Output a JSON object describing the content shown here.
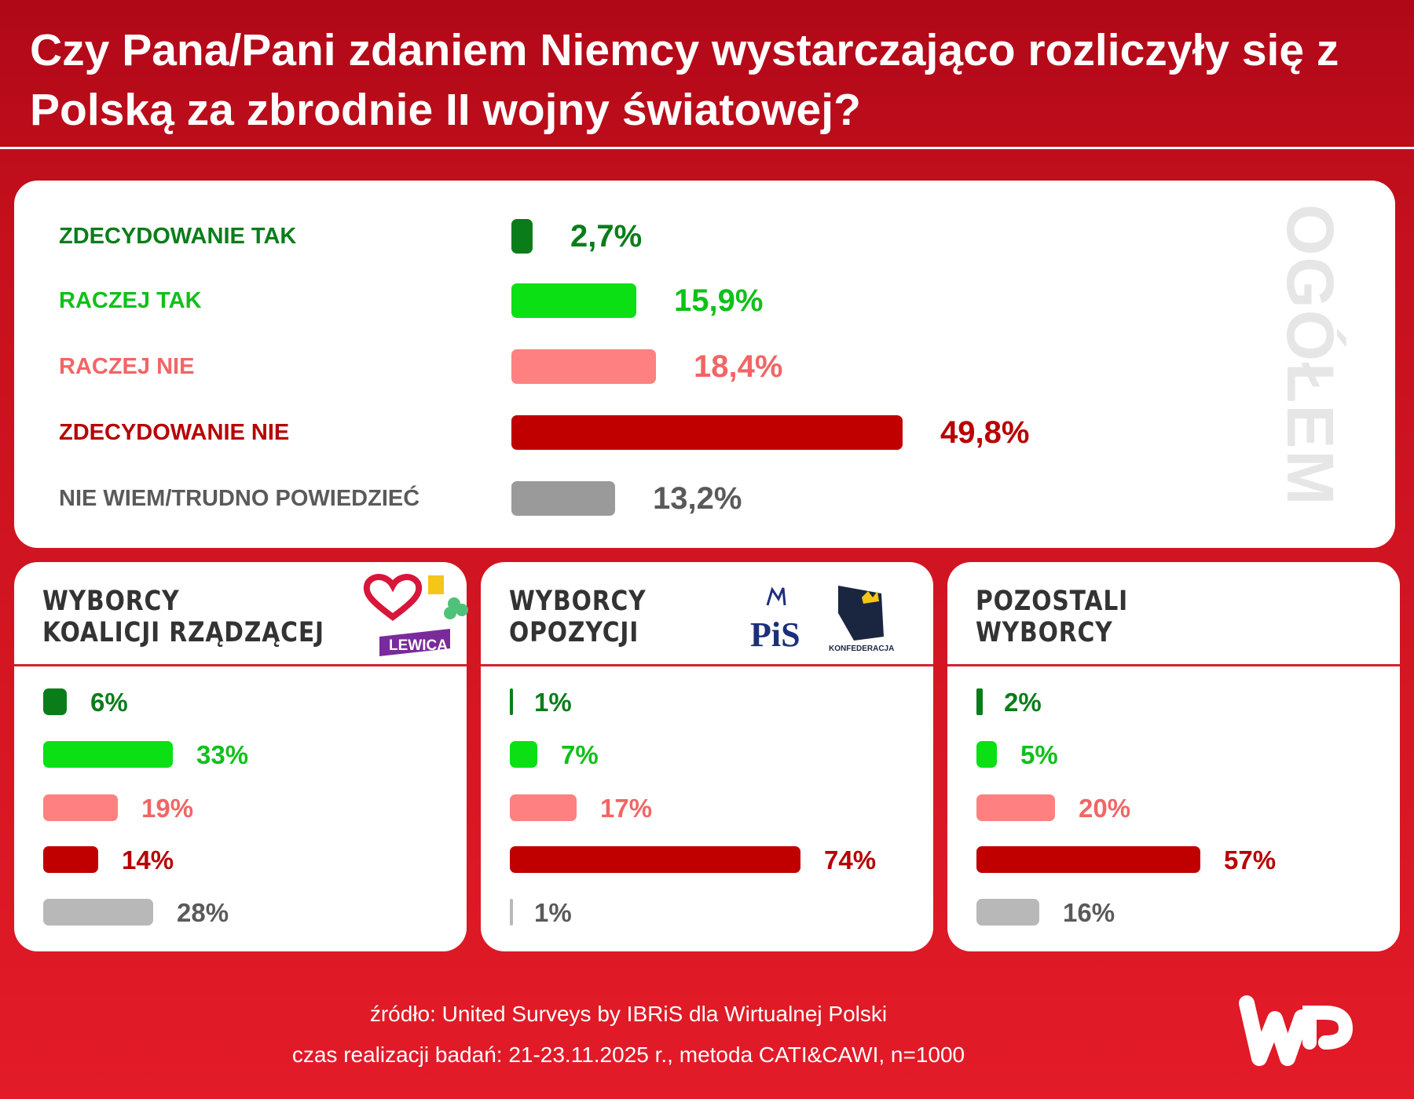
{
  "title": "Czy Pana/Pani zdaniem Niemcy wystarczająco rozliczyły się z Polską za zbrodnie II wojny światowej?",
  "colors": {
    "zdecydowanie_tak": "#0a7d1a",
    "raczej_tak": "#0ae014",
    "raczej_nie": "#ff8080",
    "zdecydowanie_nie": "#c00000",
    "nie_wiem": "#9a9a9a",
    "nie_wiem_small": "#b8b8b8",
    "background": "#e31b28"
  },
  "chart_data": [
    {
      "type": "bar",
      "title": "OGÓŁEM",
      "categories": [
        "ZDECYDOWANIE TAK",
        "RACZEJ TAK",
        "RACZEJ NIE",
        "ZDECYDOWANIE NIE",
        "NIE WIEM/TRUDNO POWIEDZIEĆ"
      ],
      "values": [
        2.7,
        15.9,
        18.4,
        49.8,
        13.2
      ],
      "labels": [
        "2,7%",
        "15,9%",
        "18,4%",
        "49,8%",
        "13,2%"
      ],
      "orientation": "horizontal"
    },
    {
      "type": "bar",
      "title": "WYBORCY KOALICJI RZĄDZĄCEJ",
      "values": [
        6,
        33,
        19,
        14,
        28
      ],
      "labels": [
        "6%",
        "33%",
        "19%",
        "14%",
        "28%"
      ],
      "orientation": "horizontal"
    },
    {
      "type": "bar",
      "title": "WYBORCY OPOZYCJI",
      "values": [
        1,
        7,
        17,
        74,
        1
      ],
      "labels": [
        "1%",
        "7%",
        "17%",
        "74%",
        "1%"
      ],
      "orientation": "horizontal"
    },
    {
      "type": "bar",
      "title": "POZOSTALI WYBORCY",
      "values": [
        2,
        5,
        20,
        57,
        16
      ],
      "labels": [
        "2%",
        "5%",
        "20%",
        "57%",
        "16%"
      ],
      "orientation": "horizontal"
    }
  ],
  "panels": {
    "p1": [
      "WYBORCY",
      "KOALICJI RZĄDZĄCEJ"
    ],
    "p2": [
      "WYBORCY",
      "OPOZYCJI"
    ],
    "p3": [
      "POZOSTALI",
      "WYBORCY"
    ]
  },
  "logos": {
    "lewica": "LEWICA",
    "pis": "PiS",
    "konfederacja": "KONFEDERACJA"
  },
  "footer": {
    "source": "źródło: United Surveys by IBRiS dla Wirtualnej Polski",
    "method": "czas realizacji badań: 21-23.11.2025 r., metoda CATI&CAWI, n=1000"
  }
}
